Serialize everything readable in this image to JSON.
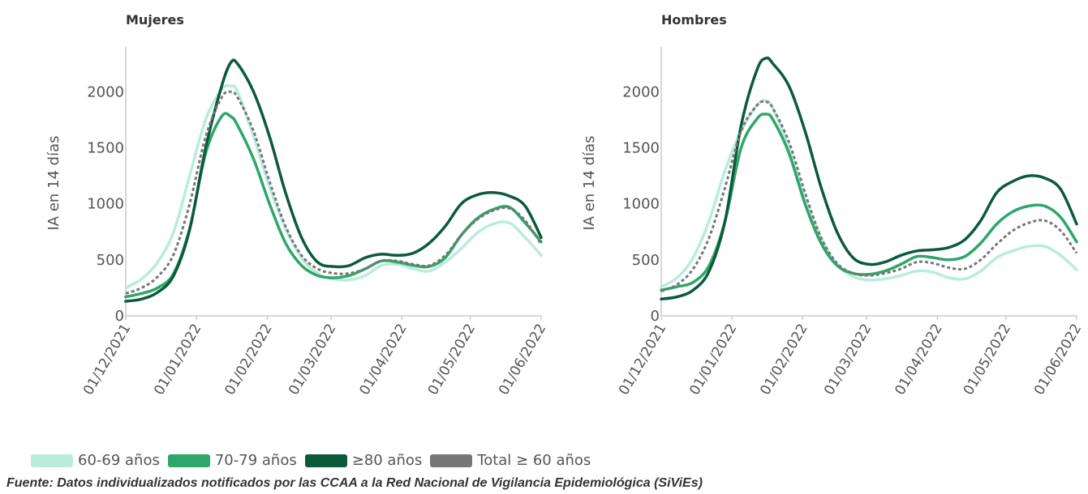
{
  "chart_data": [
    {
      "type": "line",
      "title": "Mujeres",
      "ylabel": "IA en 14 días",
      "xlabel": "",
      "ylim": [
        0,
        2400
      ],
      "yticks": [
        0,
        500,
        1000,
        1500,
        2000
      ],
      "xlim": [
        "2021-12-01",
        "2022-06-01"
      ],
      "xticks": [
        "01/12/2021",
        "01/01/2022",
        "01/02/2022",
        "01/03/2022",
        "01/04/2022",
        "01/05/2022",
        "01/06/2022"
      ],
      "grid": false,
      "series": [
        {
          "name": "60-69 años",
          "color": "#b9ecdc",
          "style": "solid",
          "x": [
            "2021-12-01",
            "2021-12-08",
            "2021-12-15",
            "2021-12-22",
            "2021-12-29",
            "2022-01-05",
            "2022-01-12",
            "2022-01-16",
            "2022-01-19",
            "2022-01-26",
            "2022-02-02",
            "2022-02-09",
            "2022-02-16",
            "2022-02-23",
            "2022-03-02",
            "2022-03-09",
            "2022-03-16",
            "2022-03-23",
            "2022-03-30",
            "2022-04-06",
            "2022-04-13",
            "2022-04-20",
            "2022-04-27",
            "2022-05-04",
            "2022-05-11",
            "2022-05-18",
            "2022-05-25",
            "2022-06-01"
          ],
          "y": [
            250,
            330,
            480,
            750,
            1250,
            1750,
            2020,
            2050,
            2000,
            1600,
            1150,
            780,
            520,
            380,
            330,
            320,
            360,
            450,
            460,
            420,
            400,
            480,
            600,
            740,
            820,
            830,
            700,
            540
          ]
        },
        {
          "name": "70-79 años",
          "color": "#2ea66a",
          "style": "solid",
          "x": [
            "2021-12-01",
            "2021-12-08",
            "2021-12-15",
            "2021-12-22",
            "2021-12-29",
            "2022-01-05",
            "2022-01-12",
            "2022-01-16",
            "2022-01-19",
            "2022-01-26",
            "2022-02-02",
            "2022-02-09",
            "2022-02-16",
            "2022-02-23",
            "2022-03-02",
            "2022-03-09",
            "2022-03-16",
            "2022-03-23",
            "2022-03-30",
            "2022-04-06",
            "2022-04-13",
            "2022-04-20",
            "2022-04-27",
            "2022-05-04",
            "2022-05-11",
            "2022-05-18",
            "2022-05-25",
            "2022-06-01"
          ],
          "y": [
            170,
            200,
            250,
            380,
            780,
            1450,
            1780,
            1780,
            1700,
            1400,
            1000,
            650,
            450,
            360,
            340,
            360,
            420,
            490,
            480,
            450,
            440,
            520,
            720,
            870,
            950,
            970,
            830,
            660
          ]
        },
        {
          "name": "≥80 años",
          "color": "#0b5a3b",
          "style": "solid",
          "x": [
            "2021-12-01",
            "2021-12-08",
            "2021-12-15",
            "2021-12-22",
            "2021-12-29",
            "2022-01-05",
            "2022-01-12",
            "2022-01-16",
            "2022-01-19",
            "2022-01-26",
            "2022-02-02",
            "2022-02-09",
            "2022-02-16",
            "2022-02-23",
            "2022-03-02",
            "2022-03-09",
            "2022-03-16",
            "2022-03-23",
            "2022-03-30",
            "2022-04-06",
            "2022-04-13",
            "2022-04-20",
            "2022-04-27",
            "2022-05-04",
            "2022-05-11",
            "2022-05-18",
            "2022-05-25",
            "2022-06-01"
          ],
          "y": [
            130,
            150,
            210,
            360,
            770,
            1500,
            2050,
            2260,
            2250,
            2000,
            1600,
            1100,
            700,
            480,
            440,
            450,
            520,
            550,
            540,
            560,
            650,
            800,
            1000,
            1080,
            1100,
            1070,
            980,
            700
          ]
        },
        {
          "name": "Total ≥ 60 años",
          "color": "#777777",
          "style": "dashed",
          "x": [
            "2021-12-01",
            "2021-12-08",
            "2021-12-15",
            "2021-12-22",
            "2021-12-29",
            "2022-01-05",
            "2022-01-12",
            "2022-01-16",
            "2022-01-19",
            "2022-01-26",
            "2022-02-02",
            "2022-02-09",
            "2022-02-16",
            "2022-02-23",
            "2022-03-02",
            "2022-03-09",
            "2022-03-16",
            "2022-03-23",
            "2022-03-30",
            "2022-04-06",
            "2022-04-13",
            "2022-04-20",
            "2022-04-27",
            "2022-05-04",
            "2022-05-11",
            "2022-05-18",
            "2022-05-25",
            "2022-06-01"
          ],
          "y": [
            200,
            250,
            350,
            550,
            1000,
            1600,
            1950,
            2000,
            1950,
            1650,
            1200,
            800,
            540,
            420,
            380,
            380,
            420,
            490,
            490,
            460,
            450,
            540,
            720,
            860,
            940,
            960,
            850,
            640
          ]
        }
      ]
    },
    {
      "type": "line",
      "title": "Hombres",
      "ylabel": "IA en 14 días",
      "xlabel": "",
      "ylim": [
        0,
        2400
      ],
      "yticks": [
        0,
        500,
        1000,
        1500,
        2000
      ],
      "xlim": [
        "2021-12-01",
        "2022-06-01"
      ],
      "xticks": [
        "01/12/2021",
        "01/01/2022",
        "01/02/2022",
        "01/03/2022",
        "01/04/2022",
        "01/05/2022",
        "01/06/2022"
      ],
      "grid": false,
      "series": [
        {
          "name": "60-69 años",
          "color": "#b9ecdc",
          "style": "solid",
          "x": [
            "2021-12-01",
            "2021-12-08",
            "2021-12-15",
            "2021-12-22",
            "2021-12-29",
            "2022-01-05",
            "2022-01-12",
            "2022-01-16",
            "2022-01-19",
            "2022-01-26",
            "2022-02-02",
            "2022-02-09",
            "2022-02-16",
            "2022-02-23",
            "2022-03-02",
            "2022-03-09",
            "2022-03-16",
            "2022-03-23",
            "2022-03-30",
            "2022-04-06",
            "2022-04-13",
            "2022-04-20",
            "2022-04-27",
            "2022-05-04",
            "2022-05-11",
            "2022-05-18",
            "2022-05-25",
            "2022-06-01"
          ],
          "y": [
            260,
            340,
            520,
            850,
            1300,
            1650,
            1880,
            1920,
            1850,
            1500,
            1050,
            700,
            460,
            350,
            320,
            330,
            360,
            400,
            390,
            340,
            330,
            400,
            520,
            580,
            620,
            620,
            540,
            410
          ]
        },
        {
          "name": "70-79 años",
          "color": "#2ea66a",
          "style": "solid",
          "x": [
            "2021-12-01",
            "2021-12-08",
            "2021-12-15",
            "2021-12-22",
            "2021-12-29",
            "2022-01-05",
            "2022-01-12",
            "2022-01-16",
            "2022-01-19",
            "2022-01-26",
            "2022-02-02",
            "2022-02-09",
            "2022-02-16",
            "2022-02-23",
            "2022-03-02",
            "2022-03-09",
            "2022-03-16",
            "2022-03-23",
            "2022-03-30",
            "2022-04-06",
            "2022-04-13",
            "2022-04-20",
            "2022-04-27",
            "2022-05-04",
            "2022-05-11",
            "2022-05-18",
            "2022-05-25",
            "2022-06-01"
          ],
          "y": [
            230,
            260,
            300,
            450,
            850,
            1500,
            1760,
            1800,
            1750,
            1450,
            1000,
            650,
            450,
            380,
            370,
            400,
            460,
            530,
            520,
            500,
            530,
            650,
            820,
            930,
            980,
            980,
            880,
            660
          ]
        },
        {
          "name": "≥80 años",
          "color": "#0b5a3b",
          "style": "solid",
          "x": [
            "2021-12-01",
            "2021-12-08",
            "2021-12-15",
            "2021-12-22",
            "2021-12-29",
            "2022-01-05",
            "2022-01-12",
            "2022-01-16",
            "2022-01-19",
            "2022-01-26",
            "2022-02-02",
            "2022-02-09",
            "2022-02-16",
            "2022-02-23",
            "2022-03-02",
            "2022-03-09",
            "2022-03-16",
            "2022-03-23",
            "2022-03-30",
            "2022-04-06",
            "2022-04-13",
            "2022-04-20",
            "2022-04-27",
            "2022-05-04",
            "2022-05-11",
            "2022-05-18",
            "2022-05-25",
            "2022-06-01"
          ],
          "y": [
            150,
            170,
            230,
            400,
            850,
            1700,
            2200,
            2300,
            2250,
            2050,
            1650,
            1150,
            750,
            520,
            460,
            480,
            540,
            580,
            590,
            610,
            680,
            850,
            1100,
            1200,
            1250,
            1230,
            1130,
            820
          ]
        },
        {
          "name": "Total ≥ 60 años",
          "color": "#777777",
          "style": "dashed",
          "x": [
            "2021-12-01",
            "2021-12-08",
            "2021-12-15",
            "2021-12-22",
            "2021-12-29",
            "2022-01-05",
            "2022-01-12",
            "2022-01-16",
            "2022-01-19",
            "2022-01-26",
            "2022-02-02",
            "2022-02-09",
            "2022-02-16",
            "2022-02-23",
            "2022-03-02",
            "2022-03-09",
            "2022-03-16",
            "2022-03-23",
            "2022-03-30",
            "2022-04-06",
            "2022-04-13",
            "2022-04-20",
            "2022-04-27",
            "2022-05-04",
            "2022-05-11",
            "2022-05-18",
            "2022-05-25",
            "2022-06-01"
          ],
          "y": [
            220,
            280,
            420,
            700,
            1150,
            1650,
            1880,
            1910,
            1850,
            1550,
            1100,
            700,
            470,
            380,
            360,
            380,
            420,
            480,
            470,
            430,
            420,
            500,
            640,
            760,
            830,
            850,
            760,
            560
          ]
        }
      ]
    }
  ],
  "legend": [
    {
      "label": "60-69 años",
      "color": "#b9ecdc"
    },
    {
      "label": "70-79 años",
      "color": "#2ea66a"
    },
    {
      "label": "≥80 años",
      "color": "#0b5a3b"
    },
    {
      "label": "Total ≥ 60 años",
      "color": "#777777"
    }
  ],
  "source": "Fuente: Datos individualizados notificados por las CCAA a la Red Nacional de Vigilancia Epidemiológica (SiViEs)"
}
